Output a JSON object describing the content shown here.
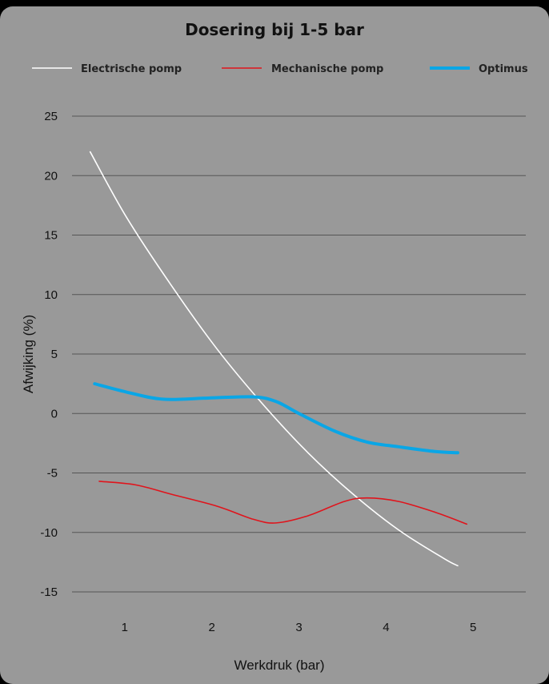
{
  "chart_data": {
    "type": "line",
    "title": "Dosering bij 1-5 bar",
    "xlabel": "Werkdruk (bar)",
    "ylabel": "Afwijking (%)",
    "categories": [
      "1",
      "2",
      "3",
      "4",
      "5"
    ],
    "ylim": [
      -15,
      25
    ],
    "yticks": [
      25,
      20,
      15,
      10,
      5,
      0,
      -5,
      -10,
      -15
    ],
    "grid": true,
    "legend_position": "top",
    "series": [
      {
        "name": "Electrische pomp",
        "color": "#ffffff",
        "x": [
          0.7,
          1.1,
          1.6,
          2.1,
          2.6,
          3.1,
          3.6,
          4.1,
          4.6,
          4.75
        ],
        "y": [
          22,
          16.5,
          10.7,
          5.4,
          0.8,
          -3.3,
          -6.8,
          -9.8,
          -12.2,
          -12.8
        ]
      },
      {
        "name": "Mechanische pomp",
        "color": "#e0141c",
        "x": [
          0.8,
          1.2,
          1.6,
          2.1,
          2.5,
          2.75,
          3.1,
          3.5,
          3.75,
          4.1,
          4.5,
          4.85
        ],
        "y": [
          -5.7,
          -6.0,
          -6.8,
          -7.8,
          -8.9,
          -9.2,
          -8.6,
          -7.4,
          -7.1,
          -7.4,
          -8.3,
          -9.3
        ]
      },
      {
        "name": "Optimus",
        "color": "#0aa6e6",
        "x": [
          0.75,
          1.1,
          1.5,
          2.0,
          2.5,
          2.75,
          3.0,
          3.4,
          3.75,
          4.1,
          4.5,
          4.75
        ],
        "y": [
          2.5,
          1.8,
          1.2,
          1.3,
          1.4,
          1.0,
          0.0,
          -1.5,
          -2.4,
          -2.8,
          -3.2,
          -3.3
        ]
      }
    ]
  }
}
